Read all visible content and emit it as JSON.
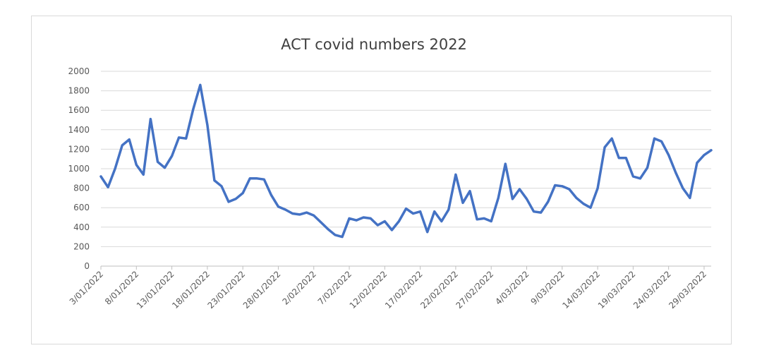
{
  "chart_data": {
    "type": "line",
    "title": "ACT covid numbers 2022",
    "xlabel": "",
    "ylabel": "",
    "ylim": [
      0,
      2000
    ],
    "y_ticks": [
      0,
      200,
      400,
      600,
      800,
      1000,
      1200,
      1400,
      1600,
      1800,
      2000
    ],
    "x_tick_labels": [
      "3/01/2022",
      "8/01/2022",
      "13/01/2022",
      "18/01/2022",
      "23/01/2022",
      "28/01/2022",
      "2/02/2022",
      "7/02/2022",
      "12/02/2022",
      "17/02/2022",
      "22/02/2022",
      "27/02/2022",
      "4/03/2022",
      "9/03/2022",
      "14/03/2022",
      "19/03/2022",
      "24/03/2022",
      "29/03/2022"
    ],
    "grid": true,
    "legend": "none",
    "line_color": "#4472C4",
    "x_start_date": "2022-01-03",
    "series": [
      {
        "values": [
          920,
          810,
          1000,
          1240,
          1300,
          1040,
          940,
          1510,
          1070,
          1010,
          1130,
          1320,
          1310,
          1610,
          1860,
          1450,
          880,
          820,
          660,
          690,
          750,
          900,
          900,
          890,
          730,
          610,
          580,
          540,
          530,
          550,
          520,
          450,
          380,
          320,
          300,
          490,
          470,
          500,
          490,
          420,
          460,
          370,
          460,
          590,
          540,
          560,
          350,
          560,
          460,
          580,
          940,
          650,
          770,
          480,
          490,
          460,
          700,
          1050,
          690,
          790,
          690,
          560,
          550,
          660,
          830,
          820,
          790,
          700,
          640,
          600,
          800,
          1220,
          1310,
          1110,
          1110,
          920,
          900,
          1010,
          1310,
          1280,
          1140,
          960,
          800,
          700,
          1060,
          1140,
          1190
        ]
      }
    ]
  }
}
